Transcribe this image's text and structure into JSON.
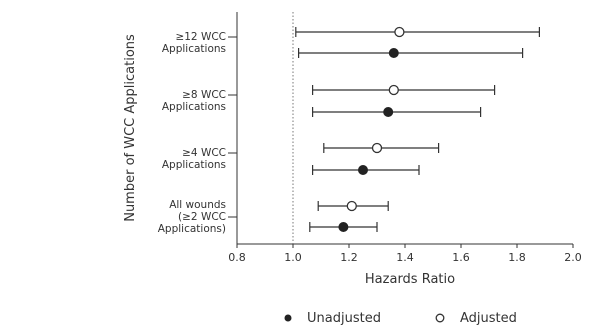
{
  "chart_data": {
    "type": "forest",
    "xlabel": "Hazards Ratio",
    "ylabel": "Number of WCC Applications",
    "xlim": [
      0.8,
      2.0
    ],
    "xticks": [
      "0.8",
      "1.0",
      "1.2",
      "1.4",
      "1.6",
      "1.8",
      "2.0"
    ],
    "reference_line": 1.0,
    "categories": [
      {
        "label_lines": [
          "≥12 WCC",
          "Applications"
        ]
      },
      {
        "label_lines": [
          "≥8 WCC",
          "Applications"
        ]
      },
      {
        "label_lines": [
          "≥4 WCC",
          "Applications"
        ]
      },
      {
        "label_lines": [
          "All wounds",
          "(≥2 WCC",
          "Applications)"
        ]
      }
    ],
    "series": [
      {
        "name": "Adjusted",
        "marker": "open-circle",
        "points": [
          {
            "estimate": 1.38,
            "lower": 1.01,
            "upper": 1.88
          },
          {
            "estimate": 1.36,
            "lower": 1.07,
            "upper": 1.72
          },
          {
            "estimate": 1.3,
            "lower": 1.11,
            "upper": 1.52
          },
          {
            "estimate": 1.21,
            "lower": 1.09,
            "upper": 1.34
          }
        ]
      },
      {
        "name": "Unadjusted",
        "marker": "filled-circle",
        "points": [
          {
            "estimate": 1.36,
            "lower": 1.02,
            "upper": 1.82
          },
          {
            "estimate": 1.34,
            "lower": 1.07,
            "upper": 1.67
          },
          {
            "estimate": 1.25,
            "lower": 1.07,
            "upper": 1.45
          },
          {
            "estimate": 1.18,
            "lower": 1.06,
            "upper": 1.3
          }
        ]
      }
    ],
    "legend": [
      {
        "label": "Unadjusted",
        "marker": "filled-circle"
      },
      {
        "label": "Adjusted",
        "marker": "open-circle"
      }
    ],
    "legend_position": "bottom",
    "grid": false
  }
}
